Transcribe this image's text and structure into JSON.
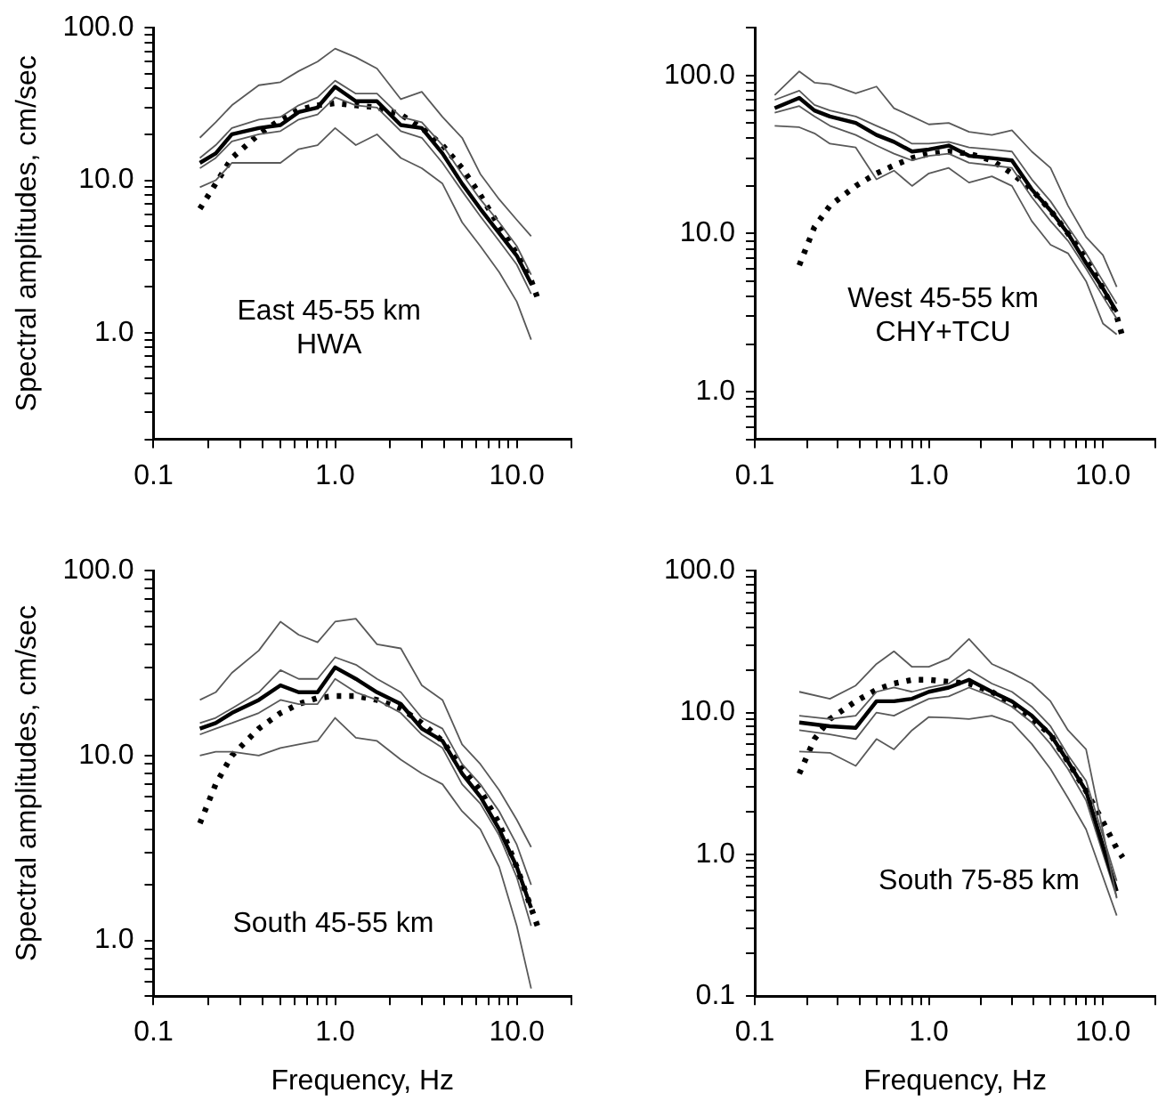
{
  "chart_data": [
    {
      "type": "line",
      "ylabel": "Spectral amplitudes, cm/sec",
      "annotations": [
        "East 45-55 km",
        "HWA"
      ],
      "log": "xy",
      "grid": false,
      "legend": false,
      "marker": "none",
      "line_style": "solid",
      "x": [
        0.18,
        0.22,
        0.27,
        0.38,
        0.5,
        0.63,
        0.8,
        1.0,
        1.3,
        1.7,
        2.3,
        3.0,
        3.9,
        5.0,
        6.3,
        8.0,
        10,
        12
      ],
      "xlim": [
        0.1,
        20
      ],
      "xticks": [
        {
          "value": 0.1,
          "label": "0.1"
        },
        {
          "value": 0.2,
          "label": null
        },
        {
          "value": 0.3,
          "label": null
        },
        {
          "value": 0.4,
          "label": null
        },
        {
          "value": 0.5,
          "label": null
        },
        {
          "value": 0.6,
          "label": null
        },
        {
          "value": 0.7,
          "label": null
        },
        {
          "value": 0.8,
          "label": null
        },
        {
          "value": 0.9,
          "label": null
        },
        {
          "value": 1,
          "label": "1.0"
        },
        {
          "value": 2,
          "label": null
        },
        {
          "value": 3,
          "label": null
        },
        {
          "value": 4,
          "label": null
        },
        {
          "value": 5,
          "label": null
        },
        {
          "value": 6,
          "label": null
        },
        {
          "value": 7,
          "label": null
        },
        {
          "value": 8,
          "label": null
        },
        {
          "value": 9,
          "label": null
        },
        {
          "value": 10,
          "label": "10.0"
        },
        {
          "value": 20,
          "label": null
        }
      ],
      "ylim": [
        0.2,
        100
      ],
      "yticks": [
        {
          "value": 0.2,
          "label": null
        },
        {
          "value": 0.3,
          "label": null
        },
        {
          "value": 0.4,
          "label": null
        },
        {
          "value": 0.5,
          "label": null
        },
        {
          "value": 0.6,
          "label": null
        },
        {
          "value": 0.7,
          "label": null
        },
        {
          "value": 0.8,
          "label": null
        },
        {
          "value": 0.9,
          "label": null
        },
        {
          "value": 1,
          "label": "1.0"
        },
        {
          "value": 2,
          "label": null
        },
        {
          "value": 3,
          "label": null
        },
        {
          "value": 4,
          "label": null
        },
        {
          "value": 5,
          "label": null
        },
        {
          "value": 6,
          "label": null
        },
        {
          "value": 7,
          "label": null
        },
        {
          "value": 8,
          "label": null
        },
        {
          "value": 9,
          "label": null
        },
        {
          "value": 10,
          "label": "10.0"
        },
        {
          "value": 20,
          "label": null
        },
        {
          "value": 30,
          "label": null
        },
        {
          "value": 40,
          "label": null
        },
        {
          "value": 50,
          "label": null
        },
        {
          "value": 60,
          "label": null
        },
        {
          "value": 70,
          "label": null
        },
        {
          "value": 80,
          "label": null
        },
        {
          "value": 90,
          "label": null
        },
        {
          "value": 100,
          "label": "100.0"
        }
      ],
      "series": [
        {
          "color": "#595959",
          "values": [
            19,
            24,
            31,
            42,
            44,
            52,
            60,
            73,
            64,
            54,
            34,
            38,
            26,
            19,
            11,
            7.5,
            5.5,
            4.3
          ]
        },
        {
          "color": "#595959",
          "values": [
            14,
            17,
            22,
            25,
            26,
            31,
            35,
            45,
            37,
            37,
            26,
            24,
            17,
            11,
            7.5,
            5.3,
            3.7,
            2.4
          ]
        },
        {
          "color": "#000000",
          "values": [
            13,
            15,
            20,
            22,
            23,
            28,
            30,
            41,
            33,
            33,
            23,
            22,
            15,
            9.5,
            6.5,
            4.5,
            3.2,
            2.1
          ]
        },
        {
          "color": "#595959",
          "values": [
            12,
            14,
            18,
            20,
            21,
            25,
            27,
            35,
            31,
            30,
            21,
            19,
            13,
            8.5,
            5.8,
            4,
            2.8,
            1.8
          ]
        },
        {
          "color": "#595959",
          "values": [
            9,
            10,
            13,
            13,
            13,
            16,
            17,
            22,
            17,
            20,
            14,
            12,
            9.5,
            5.3,
            3.7,
            2.5,
            1.6,
            0.9
          ]
        },
        {
          "color": "#000000",
          "line_style": "dotted",
          "x": [
            0.18,
            0.22,
            0.27,
            0.38,
            0.5,
            0.63,
            0.8,
            1.0,
            1.3,
            1.7,
            2.3,
            3.0,
            3.9,
            5.0,
            6.3,
            8.0,
            10,
            12,
            13
          ],
          "values": [
            6.5,
            9.5,
            14,
            20,
            25,
            29,
            31,
            32,
            31,
            30,
            27,
            22,
            17,
            12,
            8,
            5,
            3.3,
            2.2,
            1.7
          ]
        }
      ]
    },
    {
      "type": "line",
      "annotations": [
        "West 45-55 km",
        "CHY+TCU"
      ],
      "log": "xy",
      "grid": false,
      "legend": false,
      "marker": "none",
      "line_style": "solid",
      "x": [
        0.13,
        0.18,
        0.22,
        0.27,
        0.38,
        0.5,
        0.63,
        0.8,
        1.0,
        1.3,
        1.7,
        2.3,
        3.0,
        3.9,
        5.0,
        6.3,
        8.0,
        10,
        12
      ],
      "xlim": [
        0.1,
        20
      ],
      "xticks": [
        {
          "value": 0.1,
          "label": "0.1"
        },
        {
          "value": 0.2,
          "label": null
        },
        {
          "value": 0.3,
          "label": null
        },
        {
          "value": 0.4,
          "label": null
        },
        {
          "value": 0.5,
          "label": null
        },
        {
          "value": 0.6,
          "label": null
        },
        {
          "value": 0.7,
          "label": null
        },
        {
          "value": 0.8,
          "label": null
        },
        {
          "value": 0.9,
          "label": null
        },
        {
          "value": 1,
          "label": "1.0"
        },
        {
          "value": 2,
          "label": null
        },
        {
          "value": 3,
          "label": null
        },
        {
          "value": 4,
          "label": null
        },
        {
          "value": 5,
          "label": null
        },
        {
          "value": 6,
          "label": null
        },
        {
          "value": 7,
          "label": null
        },
        {
          "value": 8,
          "label": null
        },
        {
          "value": 9,
          "label": null
        },
        {
          "value": 10,
          "label": "10.0"
        },
        {
          "value": 20,
          "label": null
        }
      ],
      "ylim": [
        0.5,
        200
      ],
      "yticks": [
        {
          "value": 0.5,
          "label": null
        },
        {
          "value": 0.6,
          "label": null
        },
        {
          "value": 0.7,
          "label": null
        },
        {
          "value": 0.8,
          "label": null
        },
        {
          "value": 0.9,
          "label": null
        },
        {
          "value": 1,
          "label": "1.0"
        },
        {
          "value": 2,
          "label": null
        },
        {
          "value": 3,
          "label": null
        },
        {
          "value": 4,
          "label": null
        },
        {
          "value": 5,
          "label": null
        },
        {
          "value": 6,
          "label": null
        },
        {
          "value": 7,
          "label": null
        },
        {
          "value": 8,
          "label": null
        },
        {
          "value": 9,
          "label": null
        },
        {
          "value": 10,
          "label": "10.0"
        },
        {
          "value": 20,
          "label": null
        },
        {
          "value": 30,
          "label": null
        },
        {
          "value": 40,
          "label": null
        },
        {
          "value": 50,
          "label": null
        },
        {
          "value": 60,
          "label": null
        },
        {
          "value": 70,
          "label": null
        },
        {
          "value": 80,
          "label": null
        },
        {
          "value": 90,
          "label": null
        },
        {
          "value": 100,
          "label": "100.0"
        },
        {
          "value": 200,
          "label": null
        }
      ],
      "series": [
        {
          "color": "#595959",
          "values": [
            75,
            106,
            90,
            88,
            77,
            85,
            62,
            55,
            49,
            50,
            44,
            42,
            45,
            33,
            26,
            15,
            9.5,
            7.3,
            4.6
          ]
        },
        {
          "color": "#595959",
          "values": [
            70,
            80,
            65,
            60,
            55,
            48,
            43,
            37,
            37,
            38,
            35,
            34,
            33,
            22,
            16,
            11,
            7.5,
            5,
            3.6
          ]
        },
        {
          "color": "#000000",
          "values": [
            62,
            72,
            60,
            55,
            50,
            42,
            38,
            33,
            34,
            36,
            31,
            30,
            29,
            19,
            14,
            10,
            6.5,
            4.5,
            3.2
          ]
        },
        {
          "color": "#595959",
          "values": [
            58,
            64,
            55,
            48,
            42,
            36,
            32,
            29,
            31,
            32,
            28,
            27,
            26,
            17,
            12,
            9,
            6,
            4,
            2.9
          ]
        },
        {
          "color": "#595959",
          "values": [
            48,
            47,
            43,
            37,
            35,
            22,
            25,
            20,
            24,
            26,
            21,
            23,
            20,
            12,
            8.5,
            7.5,
            5,
            2.7,
            2.3
          ]
        },
        {
          "color": "#000000",
          "line_style": "dotted",
          "x": [
            0.18,
            0.22,
            0.27,
            0.38,
            0.5,
            0.63,
            0.8,
            1.0,
            1.3,
            1.7,
            2.3,
            3.0,
            3.9,
            5.0,
            6.3,
            8.0,
            10,
            12,
            13
          ],
          "values": [
            6.3,
            11,
            15,
            20,
            24,
            27,
            30,
            32,
            33,
            32,
            29,
            24,
            19,
            14,
            10,
            7,
            4.5,
            3,
            2.2
          ]
        }
      ]
    },
    {
      "type": "line",
      "xlabel": "Frequency, Hz",
      "ylabel": "Spectral amplitudes, cm/sec",
      "annotations": [
        "South 45-55 km"
      ],
      "log": "xy",
      "grid": false,
      "legend": false,
      "marker": "none",
      "line_style": "solid",
      "x": [
        0.18,
        0.22,
        0.27,
        0.38,
        0.5,
        0.63,
        0.8,
        1.0,
        1.3,
        1.7,
        2.3,
        3.0,
        3.9,
        5.0,
        6.3,
        8.0,
        10,
        12
      ],
      "xlim": [
        0.1,
        20
      ],
      "xticks": [
        {
          "value": 0.1,
          "label": "0.1"
        },
        {
          "value": 0.2,
          "label": null
        },
        {
          "value": 0.3,
          "label": null
        },
        {
          "value": 0.4,
          "label": null
        },
        {
          "value": 0.5,
          "label": null
        },
        {
          "value": 0.6,
          "label": null
        },
        {
          "value": 0.7,
          "label": null
        },
        {
          "value": 0.8,
          "label": null
        },
        {
          "value": 0.9,
          "label": null
        },
        {
          "value": 1,
          "label": "1.0"
        },
        {
          "value": 2,
          "label": null
        },
        {
          "value": 3,
          "label": null
        },
        {
          "value": 4,
          "label": null
        },
        {
          "value": 5,
          "label": null
        },
        {
          "value": 6,
          "label": null
        },
        {
          "value": 7,
          "label": null
        },
        {
          "value": 8,
          "label": null
        },
        {
          "value": 9,
          "label": null
        },
        {
          "value": 10,
          "label": "10.0"
        },
        {
          "value": 20,
          "label": null
        }
      ],
      "ylim": [
        0.5,
        100
      ],
      "yticks": [
        {
          "value": 0.5,
          "label": null
        },
        {
          "value": 0.6,
          "label": null
        },
        {
          "value": 0.7,
          "label": null
        },
        {
          "value": 0.8,
          "label": null
        },
        {
          "value": 0.9,
          "label": null
        },
        {
          "value": 1,
          "label": "1.0"
        },
        {
          "value": 2,
          "label": null
        },
        {
          "value": 3,
          "label": null
        },
        {
          "value": 4,
          "label": null
        },
        {
          "value": 5,
          "label": null
        },
        {
          "value": 6,
          "label": null
        },
        {
          "value": 7,
          "label": null
        },
        {
          "value": 8,
          "label": null
        },
        {
          "value": 9,
          "label": null
        },
        {
          "value": 10,
          "label": "10.0"
        },
        {
          "value": 20,
          "label": null
        },
        {
          "value": 30,
          "label": null
        },
        {
          "value": 40,
          "label": null
        },
        {
          "value": 50,
          "label": null
        },
        {
          "value": 60,
          "label": null
        },
        {
          "value": 70,
          "label": null
        },
        {
          "value": 80,
          "label": null
        },
        {
          "value": 90,
          "label": null
        },
        {
          "value": 100,
          "label": "100.0"
        }
      ],
      "series": [
        {
          "color": "#595959",
          "values": [
            20,
            22,
            28,
            37,
            53,
            45,
            41,
            53,
            55,
            40,
            38,
            24,
            20,
            11.5,
            9,
            6.5,
            4.5,
            3.2
          ]
        },
        {
          "color": "#595959",
          "values": [
            15,
            16,
            18,
            22,
            29,
            26,
            26,
            34,
            31,
            26,
            22,
            16,
            14,
            9,
            7,
            5,
            3.3,
            2
          ]
        },
        {
          "color": "#000000",
          "values": [
            14,
            15,
            17,
            20,
            24,
            22,
            22,
            30,
            26,
            22,
            19,
            14,
            12,
            8,
            6,
            4,
            2.5,
            1.5
          ]
        },
        {
          "color": "#595959",
          "values": [
            13,
            14,
            15,
            17,
            20,
            19,
            19,
            26,
            22,
            20,
            17,
            13,
            11,
            7,
            5.5,
            3.7,
            2.2,
            1.2
          ]
        },
        {
          "color": "#595959",
          "values": [
            10,
            10.5,
            10.5,
            10,
            11,
            11.5,
            12,
            16,
            12.5,
            12,
            9.5,
            8,
            7,
            5,
            4,
            2.5,
            1.2,
            0.55
          ]
        },
        {
          "color": "#000000",
          "line_style": "dotted",
          "x": [
            0.18,
            0.22,
            0.27,
            0.38,
            0.5,
            0.63,
            0.8,
            1.0,
            1.3,
            1.7,
            2.3,
            3.0,
            3.9,
            5.0,
            6.3,
            8.0,
            10,
            12,
            13
          ],
          "values": [
            4.3,
            7,
            10,
            14,
            17,
            19,
            20.5,
            21,
            21,
            20,
            18,
            15,
            12,
            8.5,
            6.5,
            4.3,
            2.5,
            1.5,
            1.2
          ]
        }
      ]
    },
    {
      "type": "line",
      "xlabel": "Frequency, Hz",
      "annotations": [
        "South 75-85 km"
      ],
      "log": "xy",
      "grid": false,
      "legend": false,
      "marker": "none",
      "line_style": "solid",
      "x": [
        0.18,
        0.27,
        0.38,
        0.5,
        0.63,
        0.8,
        1.0,
        1.3,
        1.7,
        2.3,
        3.0,
        3.9,
        5.0,
        6.3,
        8.0,
        12
      ],
      "xlim": [
        0.1,
        20
      ],
      "xticks": [
        {
          "value": 0.1,
          "label": "0.1"
        },
        {
          "value": 0.2,
          "label": null
        },
        {
          "value": 0.3,
          "label": null
        },
        {
          "value": 0.4,
          "label": null
        },
        {
          "value": 0.5,
          "label": null
        },
        {
          "value": 0.6,
          "label": null
        },
        {
          "value": 0.7,
          "label": null
        },
        {
          "value": 0.8,
          "label": null
        },
        {
          "value": 0.9,
          "label": null
        },
        {
          "value": 1,
          "label": "1.0"
        },
        {
          "value": 2,
          "label": null
        },
        {
          "value": 3,
          "label": null
        },
        {
          "value": 4,
          "label": null
        },
        {
          "value": 5,
          "label": null
        },
        {
          "value": 6,
          "label": null
        },
        {
          "value": 7,
          "label": null
        },
        {
          "value": 8,
          "label": null
        },
        {
          "value": 9,
          "label": null
        },
        {
          "value": 10,
          "label": "10.0"
        },
        {
          "value": 20,
          "label": null
        }
      ],
      "ylim": [
        0.1,
        100
      ],
      "yticks": [
        {
          "value": 0.1,
          "label": "0.1"
        },
        {
          "value": 0.2,
          "label": null
        },
        {
          "value": 0.3,
          "label": null
        },
        {
          "value": 0.4,
          "label": null
        },
        {
          "value": 0.5,
          "label": null
        },
        {
          "value": 0.6,
          "label": null
        },
        {
          "value": 0.7,
          "label": null
        },
        {
          "value": 0.8,
          "label": null
        },
        {
          "value": 0.9,
          "label": null
        },
        {
          "value": 1,
          "label": "1.0"
        },
        {
          "value": 2,
          "label": null
        },
        {
          "value": 3,
          "label": null
        },
        {
          "value": 4,
          "label": null
        },
        {
          "value": 5,
          "label": null
        },
        {
          "value": 6,
          "label": null
        },
        {
          "value": 7,
          "label": null
        },
        {
          "value": 8,
          "label": null
        },
        {
          "value": 9,
          "label": null
        },
        {
          "value": 10,
          "label": "10.0"
        },
        {
          "value": 20,
          "label": null
        },
        {
          "value": 30,
          "label": null
        },
        {
          "value": 40,
          "label": null
        },
        {
          "value": 50,
          "label": null
        },
        {
          "value": 60,
          "label": null
        },
        {
          "value": 70,
          "label": null
        },
        {
          "value": 80,
          "label": null
        },
        {
          "value": 90,
          "label": null
        },
        {
          "value": 100,
          "label": "100.0"
        }
      ],
      "series": [
        {
          "color": "#595959",
          "values": [
            14,
            12.5,
            15.5,
            22,
            27,
            21,
            21,
            24,
            33,
            22,
            19,
            16,
            12,
            7.5,
            5.5,
            0.49
          ]
        },
        {
          "color": "#595959",
          "values": [
            9.5,
            9,
            9.5,
            14,
            15,
            14,
            15,
            16,
            20,
            16,
            14,
            11,
            8,
            5,
            3.3,
            0.65
          ]
        },
        {
          "color": "#000000",
          "values": [
            8.5,
            8,
            7.8,
            12,
            12,
            12.5,
            14,
            15,
            17,
            14,
            12,
            9.5,
            7,
            4.5,
            2.8,
            0.55
          ]
        },
        {
          "color": "#595959",
          "values": [
            7.5,
            7,
            6.5,
            10,
            9.5,
            11,
            12.5,
            13,
            15,
            13,
            11,
            8.5,
            6,
            4,
            2.4,
            0.5
          ]
        },
        {
          "color": "#595959",
          "values": [
            5.3,
            5.2,
            4.2,
            6.5,
            5.5,
            7.5,
            9.3,
            9.2,
            9,
            9.5,
            8.5,
            6,
            4,
            2.5,
            1.5,
            0.37
          ]
        },
        {
          "color": "#000000",
          "line_style": "dotted",
          "x": [
            0.18,
            0.22,
            0.27,
            0.38,
            0.5,
            0.63,
            0.8,
            1.0,
            1.3,
            1.7,
            2.3,
            3.0,
            3.9,
            5.0,
            6.3,
            8.0,
            10,
            12,
            13
          ],
          "values": [
            3.7,
            6.5,
            9,
            12,
            14.5,
            16,
            17,
            17,
            16.5,
            16,
            14,
            11.5,
            9,
            7,
            4.5,
            2.8,
            1.7,
            1.1,
            0.95
          ]
        }
      ]
    }
  ]
}
